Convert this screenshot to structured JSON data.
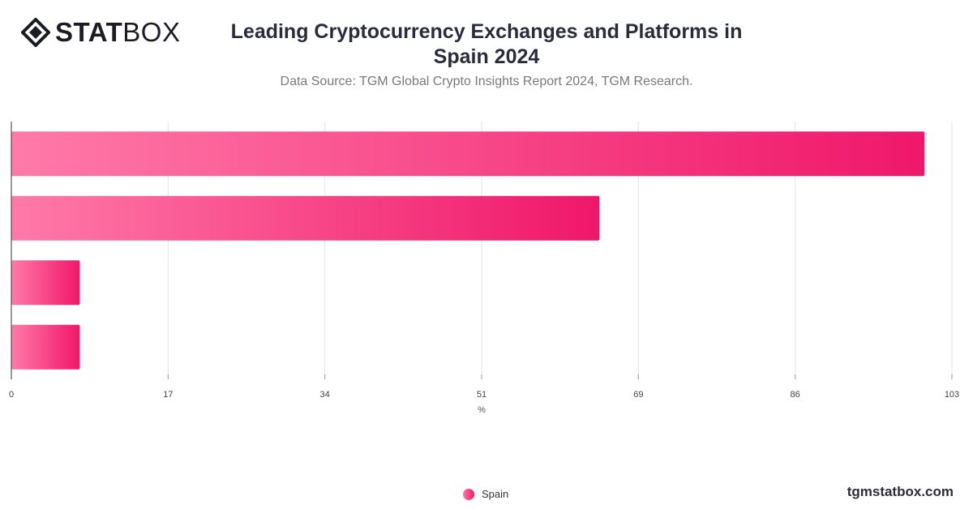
{
  "brand": {
    "logo_bold": "STAT",
    "logo_light": "BOX"
  },
  "header": {
    "title_line1": "Leading Cryptocurrency Exchanges and Platforms in",
    "title_line2": "Spain 2024",
    "subtitle": "Data Source: TGM Global Crypto Insights Report 2024, TGM Research."
  },
  "footer": {
    "site": "tgmstatbox.com"
  },
  "chart_data": {
    "type": "bar",
    "orientation": "horizontal",
    "categories": [
      "",
      "",
      "",
      ""
    ],
    "series": [
      {
        "name": "Spain",
        "values": [
          100,
          64.4,
          7.5,
          7.5
        ]
      }
    ],
    "xlabel": "%",
    "xlim": [
      0,
      103
    ],
    "xticks": [
      "0",
      "17",
      "34",
      "51",
      "69",
      "86",
      "103"
    ],
    "grid": true,
    "legend_position": "bottom-center",
    "colors": {
      "bar_start": "#ff7aa8",
      "bar_end": "#f0176a",
      "grid": "#e3e3e3",
      "axis": "#333333"
    }
  }
}
